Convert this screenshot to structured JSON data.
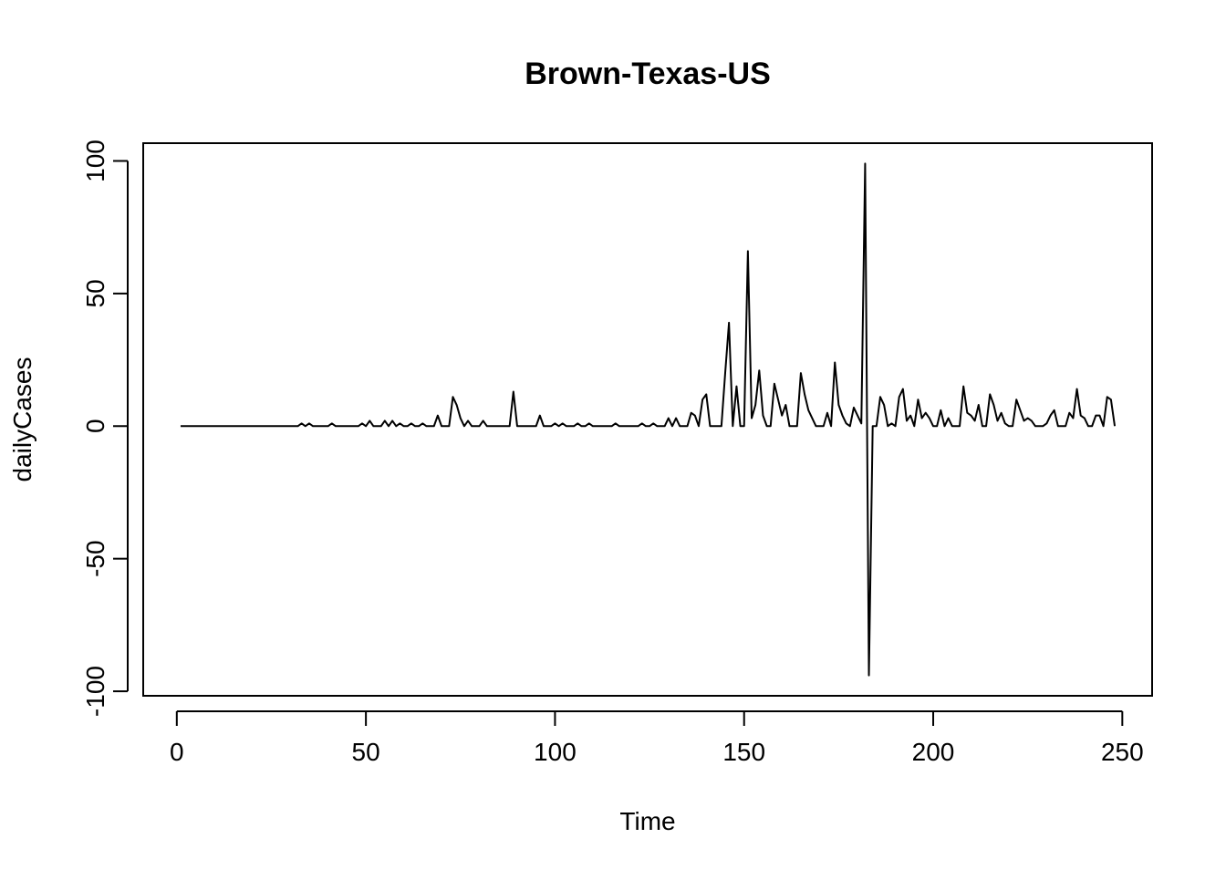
{
  "chart_data": {
    "type": "line",
    "title": "Brown-Texas-US",
    "x_label": "Time",
    "y_label": "dailyCases",
    "color": "#000000",
    "x": [
      1,
      2,
      3,
      4,
      5,
      6,
      7,
      8,
      9,
      10,
      11,
      12,
      13,
      14,
      15,
      16,
      17,
      18,
      19,
      20,
      21,
      22,
      23,
      24,
      25,
      26,
      27,
      28,
      29,
      30,
      31,
      32,
      33,
      34,
      35,
      36,
      37,
      38,
      39,
      40,
      41,
      42,
      43,
      44,
      45,
      46,
      47,
      48,
      49,
      50,
      51,
      52,
      53,
      54,
      55,
      56,
      57,
      58,
      59,
      60,
      61,
      62,
      63,
      64,
      65,
      66,
      67,
      68,
      69,
      70,
      71,
      72,
      73,
      74,
      75,
      76,
      77,
      78,
      79,
      80,
      81,
      82,
      83,
      84,
      85,
      86,
      87,
      88,
      89,
      90,
      91,
      92,
      93,
      94,
      95,
      96,
      97,
      98,
      99,
      100,
      101,
      102,
      103,
      104,
      105,
      106,
      107,
      108,
      109,
      110,
      111,
      112,
      113,
      114,
      115,
      116,
      117,
      118,
      119,
      120,
      121,
      122,
      123,
      124,
      125,
      126,
      127,
      128,
      129,
      130,
      131,
      132,
      133,
      134,
      135,
      136,
      137,
      138,
      139,
      140,
      141,
      142,
      143,
      144,
      145,
      146,
      147,
      148,
      149,
      150,
      151,
      152,
      153,
      154,
      155,
      156,
      157,
      158,
      159,
      160,
      161,
      162,
      163,
      164,
      165,
      166,
      167,
      168,
      169,
      170,
      171,
      172,
      173,
      174,
      175,
      176,
      177,
      178,
      179,
      180,
      181,
      182,
      183,
      184,
      185,
      186,
      187,
      188,
      189,
      190,
      191,
      192,
      193,
      194,
      195,
      196,
      197,
      198,
      199,
      200,
      201,
      202,
      203,
      204,
      205,
      206,
      207,
      208,
      209,
      210,
      211,
      212,
      213,
      214,
      215,
      216,
      217,
      218,
      219,
      220,
      221,
      222,
      223,
      224,
      225,
      226,
      227,
      228,
      229,
      230,
      231,
      232,
      233,
      234,
      235,
      236,
      237,
      238,
      239,
      240,
      241,
      242,
      243,
      244,
      245,
      246,
      247,
      248
    ],
    "values": [
      0,
      0,
      0,
      0,
      0,
      0,
      0,
      0,
      0,
      0,
      0,
      0,
      0,
      0,
      0,
      0,
      0,
      0,
      0,
      0,
      0,
      0,
      0,
      0,
      0,
      0,
      0,
      0,
      0,
      0,
      0,
      0,
      1,
      0,
      1,
      0,
      0,
      0,
      0,
      0,
      1,
      0,
      0,
      0,
      0,
      0,
      0,
      0,
      1,
      0,
      2,
      0,
      0,
      0,
      2,
      0,
      2,
      0,
      1,
      0,
      0,
      1,
      0,
      0,
      1,
      0,
      0,
      0,
      4,
      0,
      0,
      0,
      11,
      8,
      3,
      0,
      2,
      0,
      0,
      0,
      2,
      0,
      0,
      0,
      0,
      0,
      0,
      0,
      13,
      0,
      0,
      0,
      0,
      0,
      0,
      4,
      0,
      0,
      0,
      1,
      0,
      1,
      0,
      0,
      0,
      1,
      0,
      0,
      1,
      0,
      0,
      0,
      0,
      0,
      0,
      1,
      0,
      0,
      0,
      0,
      0,
      0,
      1,
      0,
      0,
      1,
      0,
      0,
      0,
      3,
      0,
      3,
      0,
      0,
      0,
      5,
      4,
      0,
      10,
      12,
      0,
      0,
      0,
      0,
      20,
      39,
      0,
      15,
      0,
      0,
      66,
      3,
      8,
      21,
      4,
      0,
      0,
      16,
      10,
      4,
      8,
      0,
      0,
      0,
      20,
      12,
      6,
      3,
      0,
      0,
      0,
      5,
      0,
      24,
      8,
      4,
      1,
      0,
      7,
      4,
      1,
      99,
      -94,
      0,
      0,
      11,
      8,
      0,
      1,
      0,
      11,
      14,
      2,
      4,
      0,
      10,
      3,
      5,
      3,
      0,
      0,
      6,
      0,
      3,
      0,
      0,
      0,
      15,
      5,
      4,
      2,
      8,
      0,
      0,
      12,
      8,
      2,
      5,
      1,
      0,
      0,
      10,
      6,
      2,
      3,
      2,
      0,
      0,
      0,
      1,
      4,
      6,
      0,
      0,
      0,
      5,
      3,
      14,
      4,
      3,
      0,
      0,
      4,
      4,
      0,
      11,
      10,
      0
    ],
    "xlim": [
      -8.88,
      257.88
    ],
    "ylim": [
      -101.7,
      106.7
    ],
    "xticks": [
      0,
      50,
      100,
      150,
      200,
      250
    ],
    "yticks": [
      -100,
      -50,
      0,
      50,
      100
    ]
  }
}
